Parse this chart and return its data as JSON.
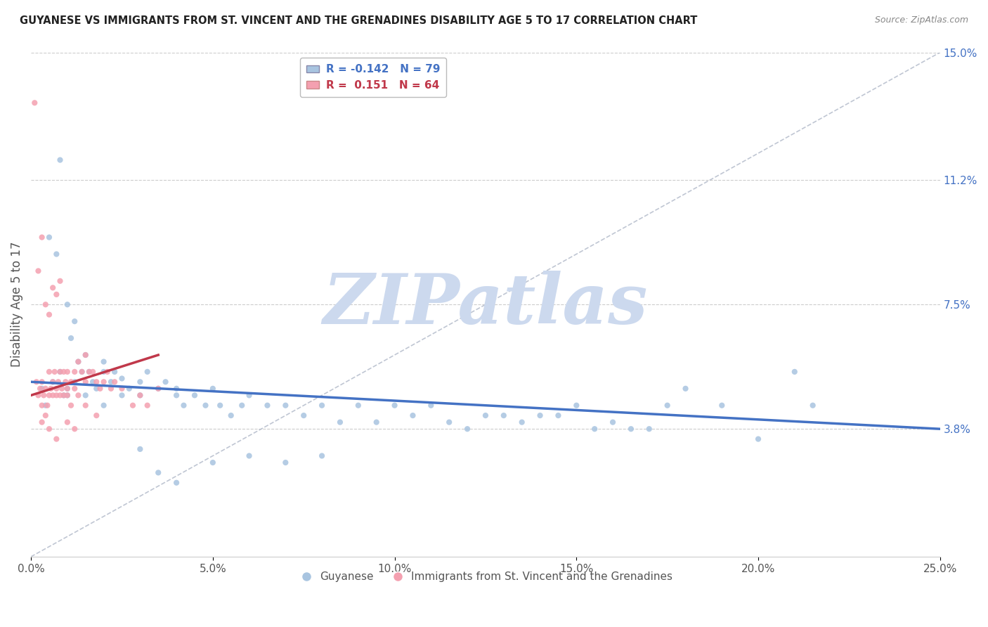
{
  "title": "GUYANESE VS IMMIGRANTS FROM ST. VINCENT AND THE GRENADINES DISABILITY AGE 5 TO 17 CORRELATION CHART",
  "source": "Source: ZipAtlas.com",
  "ylabel": "Disability Age 5 to 17",
  "xlim": [
    0.0,
    25.0
  ],
  "ylim": [
    0.0,
    15.0
  ],
  "xticks": [
    0.0,
    5.0,
    10.0,
    15.0,
    20.0,
    25.0
  ],
  "yticks_right": [
    3.8,
    7.5,
    11.2,
    15.0
  ],
  "series1_label": "Guyanese",
  "series1_color": "#a8c4e0",
  "series1_R": -0.142,
  "series1_N": 79,
  "series2_label": "Immigrants from St. Vincent and the Grenadines",
  "series2_color": "#f4a0b0",
  "series2_R": 0.151,
  "series2_N": 64,
  "trend1_color": "#4472c4",
  "trend2_color": "#c0384a",
  "watermark": "ZIPatlas",
  "watermark_color": "#ccd9ee",
  "background_color": "#ffffff",
  "trend1_x0": 0.0,
  "trend1_y0": 5.2,
  "trend1_x1": 25.0,
  "trend1_y1": 3.8,
  "trend2_x0": 0.0,
  "trend2_y0": 4.8,
  "trend2_x1": 3.5,
  "trend2_y1": 6.0,
  "guyanese_x": [
    0.3,
    0.5,
    0.6,
    0.7,
    0.8,
    0.9,
    1.0,
    1.0,
    1.1,
    1.2,
    1.3,
    1.4,
    1.5,
    1.6,
    1.7,
    1.8,
    2.0,
    2.0,
    2.2,
    2.3,
    2.5,
    2.7,
    3.0,
    3.0,
    3.2,
    3.5,
    3.7,
    4.0,
    4.0,
    4.2,
    4.5,
    4.8,
    5.0,
    5.2,
    5.5,
    5.8,
    6.0,
    6.5,
    7.0,
    7.5,
    8.0,
    8.5,
    9.0,
    9.5,
    10.0,
    10.5,
    11.0,
    11.5,
    12.0,
    12.5,
    13.0,
    13.5,
    14.0,
    14.5,
    15.0,
    15.5,
    16.0,
    16.5,
    17.0,
    17.5,
    18.0,
    19.0,
    20.0,
    21.0,
    21.5,
    0.4,
    0.8,
    1.0,
    1.2,
    1.5,
    2.0,
    2.5,
    3.0,
    3.5,
    4.0,
    5.0,
    6.0,
    7.0,
    8.0
  ],
  "guyanese_y": [
    5.0,
    9.5,
    5.2,
    9.0,
    5.5,
    4.8,
    5.0,
    7.5,
    6.5,
    7.0,
    5.8,
    5.5,
    6.0,
    5.5,
    5.2,
    5.0,
    5.5,
    5.8,
    5.2,
    5.5,
    5.3,
    5.0,
    5.2,
    4.8,
    5.5,
    5.0,
    5.2,
    5.0,
    4.8,
    4.5,
    4.8,
    4.5,
    5.0,
    4.5,
    4.2,
    4.5,
    4.8,
    4.5,
    4.5,
    4.2,
    4.5,
    4.0,
    4.5,
    4.0,
    4.5,
    4.2,
    4.5,
    4.0,
    3.8,
    4.2,
    4.2,
    4.0,
    4.2,
    4.2,
    4.5,
    3.8,
    4.0,
    3.8,
    3.8,
    4.5,
    5.0,
    4.5,
    3.5,
    5.5,
    4.5,
    4.5,
    11.8,
    4.8,
    5.2,
    4.8,
    4.5,
    4.8,
    3.2,
    2.5,
    2.2,
    2.8,
    3.0,
    2.8,
    3.0
  ],
  "stvincent_x": [
    0.1,
    0.15,
    0.2,
    0.25,
    0.3,
    0.3,
    0.35,
    0.4,
    0.4,
    0.45,
    0.5,
    0.5,
    0.55,
    0.6,
    0.6,
    0.65,
    0.7,
    0.7,
    0.75,
    0.8,
    0.8,
    0.85,
    0.9,
    0.9,
    0.95,
    1.0,
    1.0,
    1.0,
    1.1,
    1.1,
    1.2,
    1.2,
    1.3,
    1.3,
    1.4,
    1.5,
    1.5,
    1.6,
    1.7,
    1.8,
    1.9,
    2.0,
    2.1,
    2.2,
    2.3,
    2.5,
    2.8,
    3.0,
    3.2,
    3.5,
    0.3,
    0.5,
    0.7,
    1.0,
    1.2,
    1.5,
    1.8,
    0.2,
    0.3,
    0.4,
    0.5,
    0.6,
    0.7,
    0.8
  ],
  "stvincent_y": [
    13.5,
    5.2,
    4.8,
    5.0,
    5.2,
    4.5,
    4.8,
    5.0,
    4.2,
    4.5,
    4.8,
    5.5,
    5.0,
    4.8,
    5.2,
    5.5,
    5.0,
    4.8,
    5.2,
    5.5,
    4.8,
    5.0,
    5.5,
    4.8,
    5.2,
    5.0,
    5.5,
    4.8,
    5.2,
    4.5,
    5.5,
    5.0,
    5.8,
    4.8,
    5.5,
    6.0,
    5.2,
    5.5,
    5.5,
    5.2,
    5.0,
    5.2,
    5.5,
    5.0,
    5.2,
    5.0,
    4.5,
    4.8,
    4.5,
    5.0,
    4.0,
    3.8,
    3.5,
    4.0,
    3.8,
    4.5,
    4.2,
    8.5,
    9.5,
    7.5,
    7.2,
    8.0,
    7.8,
    8.2
  ]
}
